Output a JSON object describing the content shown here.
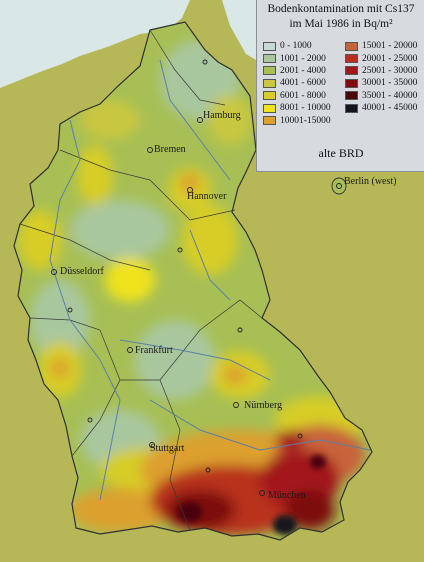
{
  "legend": {
    "title_line1": "Bodenkontamination mit Cs137",
    "title_line2": "im Mai 1986 in Bq/m²",
    "region": "alte BRD",
    "classes_left": [
      {
        "label": "0 - 1000",
        "color": "#c6d9d4"
      },
      {
        "label": "1001 - 2000",
        "color": "#a9c79e"
      },
      {
        "label": "2001 - 4000",
        "color": "#a7bf55"
      },
      {
        "label": "4001 - 6000",
        "color": "#c9c741"
      },
      {
        "label": "6001 - 8000",
        "color": "#d7cd28"
      },
      {
        "label": "8001 - 10000",
        "color": "#f0e31c"
      },
      {
        "label": "10001-15000",
        "color": "#dca02e"
      }
    ],
    "classes_right": [
      {
        "label": "15001 - 20000",
        "color": "#c8643a"
      },
      {
        "label": "20001 - 25000",
        "color": "#b8301d"
      },
      {
        "label": "25001 - 30000",
        "color": "#a3161a"
      },
      {
        "label": "30001 - 35000",
        "color": "#7d0c10"
      },
      {
        "label": "35001 - 40000",
        "color": "#4a0608"
      },
      {
        "label": "40001 - 45000",
        "color": "#14141f"
      }
    ]
  },
  "cities": {
    "hamburg": "Hamburg",
    "bremen": "Bremen",
    "hannover": "Hannover",
    "berlin": "Berlin (west)",
    "duesseldorf": "Düsseldorf",
    "frankfurt": "Frankfurt",
    "nuernberg": "Nürnberg",
    "stuttgart": "Stuttgart",
    "muenchen": "München"
  },
  "colors": {
    "outside": "#b7b95a",
    "sea": "#d8e6e6",
    "rivers": "#5b7fa6",
    "border": "#303030"
  }
}
